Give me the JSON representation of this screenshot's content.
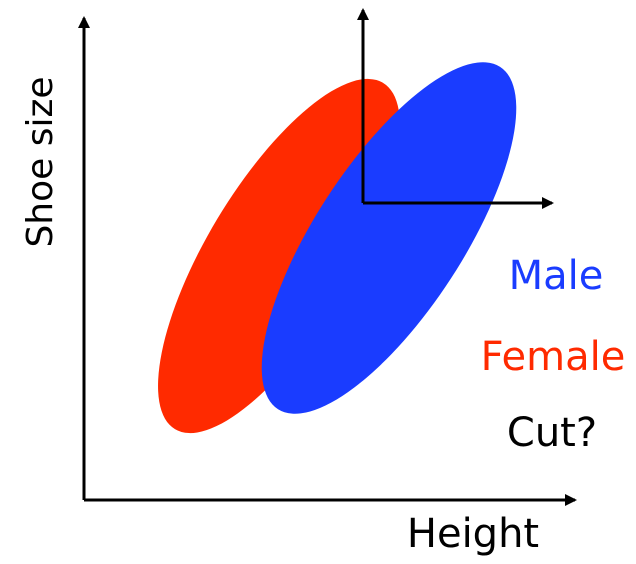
{
  "axes": {
    "x_label": "Height",
    "y_label": "Shoe size"
  },
  "legend": {
    "male": "Male",
    "female": "Female",
    "cut": "Cut?"
  },
  "colors": {
    "male": "#1a3cff",
    "female": "#ff2a00",
    "axis": "#000000",
    "cut_text": "#000000"
  }
}
